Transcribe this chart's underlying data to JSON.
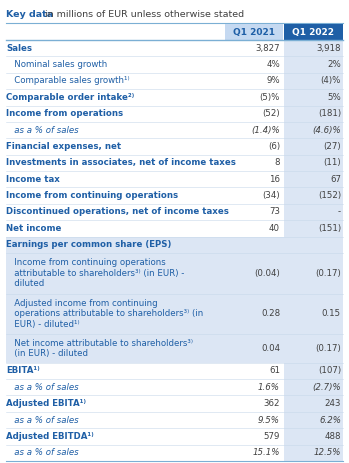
{
  "title_bold": "Key data",
  "title_normal": " in millions of EUR unless otherwise stated",
  "col_headers": [
    "Q1 2021",
    "Q1 2022"
  ],
  "rows": [
    {
      "label": "Sales",
      "indent": 0,
      "bold": true,
      "q1": "3,827",
      "q2": "3,918",
      "italic": false,
      "shaded": false
    },
    {
      "label": "   Nominal sales growth",
      "indent": 1,
      "bold": false,
      "q1": "4%",
      "q2": "2%",
      "italic": false,
      "shaded": false
    },
    {
      "label": "   Comparable sales growth¹⁾",
      "indent": 1,
      "bold": false,
      "q1": "9%",
      "q2": "(4)%",
      "italic": false,
      "shaded": false
    },
    {
      "label": "Comparable order intake²⁾",
      "indent": 0,
      "bold": true,
      "q1": "(5)%",
      "q2": "5%",
      "italic": false,
      "shaded": false
    },
    {
      "label": "Income from operations",
      "indent": 0,
      "bold": true,
      "q1": "(52)",
      "q2": "(181)",
      "italic": false,
      "shaded": false
    },
    {
      "label": "   as a % of sales",
      "indent": 1,
      "bold": false,
      "q1": "(1.4)%",
      "q2": "(4.6)%",
      "italic": true,
      "shaded": false
    },
    {
      "label": "Financial expenses, net",
      "indent": 0,
      "bold": true,
      "q1": "(6)",
      "q2": "(27)",
      "italic": false,
      "shaded": false
    },
    {
      "label": "Investments in associates, net of income taxes",
      "indent": 0,
      "bold": true,
      "q1": "8",
      "q2": "(11)",
      "italic": false,
      "shaded": false
    },
    {
      "label": "Income tax",
      "indent": 0,
      "bold": true,
      "q1": "16",
      "q2": "67",
      "italic": false,
      "shaded": false
    },
    {
      "label": "Income from continuing operations",
      "indent": 0,
      "bold": true,
      "q1": "(34)",
      "q2": "(152)",
      "italic": false,
      "shaded": false
    },
    {
      "label": "Discontinued operations, net of income taxes",
      "indent": 0,
      "bold": true,
      "q1": "73",
      "q2": "-",
      "italic": false,
      "shaded": false
    },
    {
      "label": "Net income",
      "indent": 0,
      "bold": true,
      "q1": "40",
      "q2": "(151)",
      "italic": false,
      "shaded": false
    },
    {
      "label": "Earnings per common share (EPS)",
      "indent": 0,
      "bold": true,
      "q1": "",
      "q2": "",
      "italic": false,
      "shaded": true
    },
    {
      "label": "   Income from continuing operations\n   attributable to shareholders³⁾ (in EUR) -\n   diluted",
      "indent": 1,
      "bold": false,
      "q1": "(0.04)",
      "q2": "(0.17)",
      "italic": false,
      "shaded": true
    },
    {
      "label": "   Adjusted income from continuing\n   operations attributable to shareholders³⁾ (in\n   EUR) - diluted¹⁾",
      "indent": 1,
      "bold": false,
      "q1": "0.28",
      "q2": "0.15",
      "italic": false,
      "shaded": true
    },
    {
      "label": "   Net income attributable to shareholders³⁾\n   (in EUR) - diluted",
      "indent": 1,
      "bold": false,
      "q1": "0.04",
      "q2": "(0.17)",
      "italic": false,
      "shaded": true
    },
    {
      "label": "EBITA¹⁾",
      "indent": 0,
      "bold": true,
      "q1": "61",
      "q2": "(107)",
      "italic": false,
      "shaded": false
    },
    {
      "label": "   as a % of sales",
      "indent": 1,
      "bold": false,
      "q1": "1.6%",
      "q2": "(2.7)%",
      "italic": true,
      "shaded": false
    },
    {
      "label": "Adjusted EBITA¹⁾",
      "indent": 0,
      "bold": true,
      "q1": "362",
      "q2": "243",
      "italic": false,
      "shaded": false
    },
    {
      "label": "   as a % of sales",
      "indent": 1,
      "bold": false,
      "q1": "9.5%",
      "q2": "6.2%",
      "italic": true,
      "shaded": false
    },
    {
      "label": "Adjusted EBITDA¹⁾",
      "indent": 0,
      "bold": true,
      "q1": "579",
      "q2": "488",
      "italic": false,
      "shaded": false
    },
    {
      "label": "   as a % of sales",
      "indent": 1,
      "bold": false,
      "q1": "15.1%",
      "q2": "12.5%",
      "italic": true,
      "shaded": false
    }
  ],
  "header_bg_left": "#c5d9f1",
  "header_bg_right": "#1f5fa6",
  "header_text_left": "#1f5fa6",
  "header_text_right": "#ffffff",
  "shaded_bg": "#dce6f4",
  "col2_bg": "#dce6f4",
  "row_bg": "#ffffff",
  "sep_line_color": "#7bafd4",
  "thin_line_color": "#c8d8eb",
  "label_color": "#1f5fa6",
  "value_color": "#404040",
  "title_bold_color": "#1f5fa6",
  "title_normal_color": "#404040",
  "figw": 3.49,
  "figh": 4.63,
  "dpi": 100
}
